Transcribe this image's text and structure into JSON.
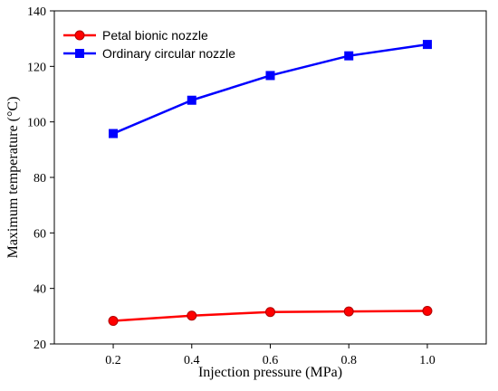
{
  "chart_data": {
    "type": "line",
    "xlabel": "Injection pressure (MPa)",
    "ylabel": "Maximum temperature (°C)",
    "x": [
      0.2,
      0.4,
      0.6,
      0.8,
      1.0
    ],
    "x_tick_labels": [
      "0.2",
      "0.4",
      "0.6",
      "0.8",
      "1.0"
    ],
    "y_ticks": [
      20,
      40,
      60,
      80,
      100,
      120,
      140
    ],
    "xlim": [
      0.05,
      1.15
    ],
    "ylim": [
      20,
      140
    ],
    "grid": false,
    "legend_position": "top-left",
    "series": [
      {
        "name": "Petal bionic nozzle",
        "values": [
          28.3,
          30.2,
          31.5,
          31.7,
          31.9
        ],
        "color": "#ff0000",
        "marker": "circle"
      },
      {
        "name": "Ordinary circular nozzle",
        "values": [
          95.8,
          107.8,
          116.7,
          123.8,
          127.9
        ],
        "color": "#0000ff",
        "marker": "square"
      }
    ]
  }
}
